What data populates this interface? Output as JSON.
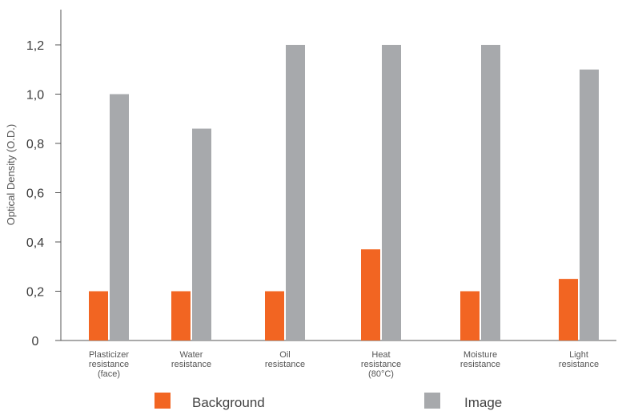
{
  "chart_data": {
    "type": "bar",
    "title": "",
    "xlabel": "",
    "ylabel": "Optical Density (O.D.)",
    "ylim": [
      0,
      1.35
    ],
    "yticks": [
      "0",
      "0,2",
      "0,4",
      "0,6",
      "0,8",
      "1,0",
      "1,2"
    ],
    "categories": [
      [
        "Plasticizer",
        "resistance",
        "(face)"
      ],
      [
        "Water",
        "resistance"
      ],
      [
        "Oil",
        "resistance"
      ],
      [
        "Heat",
        "resistance",
        "(80°C)"
      ],
      [
        "Moisture",
        "resistance"
      ],
      [
        "Light",
        "resistance"
      ]
    ],
    "series": [
      {
        "name": "Background",
        "color": "#f26522",
        "values": [
          0.2,
          0.2,
          0.2,
          0.37,
          0.2,
          0.25
        ]
      },
      {
        "name": "Image",
        "color": "#a7a9ac",
        "values": [
          1.0,
          0.86,
          1.2,
          1.2,
          1.2,
          1.1
        ]
      }
    ],
    "grid": false,
    "legend_position": "bottom"
  }
}
